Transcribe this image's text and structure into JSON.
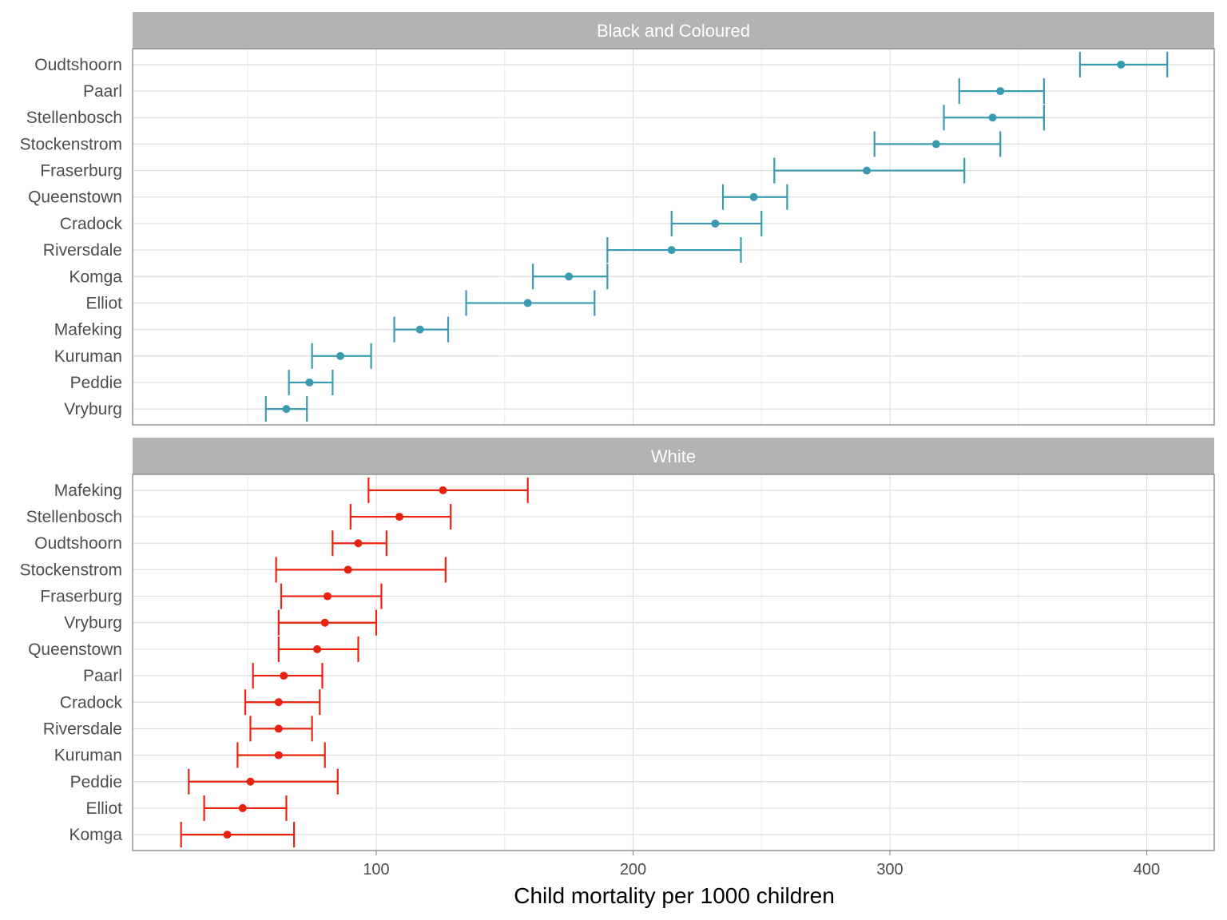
{
  "chart_data": {
    "type": "dot-errorbar",
    "xlabel": "Child mortality per 1000 children",
    "x_ticks": [
      100,
      200,
      300,
      400
    ],
    "xlim": [
      10,
      425
    ],
    "facets": [
      {
        "title": "Black and Coloured",
        "color": "#3a9bb0",
        "points": [
          {
            "label": "Oudtshoorn",
            "value": 390,
            "low": 374,
            "high": 408
          },
          {
            "label": "Paarl",
            "value": 343,
            "low": 327,
            "high": 360
          },
          {
            "label": "Stellenbosch",
            "value": 340,
            "low": 321,
            "high": 360
          },
          {
            "label": "Stockenstrom",
            "value": 318,
            "low": 294,
            "high": 343
          },
          {
            "label": "Fraserburg",
            "value": 291,
            "low": 255,
            "high": 329
          },
          {
            "label": "Queenstown",
            "value": 247,
            "low": 235,
            "high": 260
          },
          {
            "label": "Cradock",
            "value": 232,
            "low": 215,
            "high": 250
          },
          {
            "label": "Riversdale",
            "value": 215,
            "low": 190,
            "high": 242
          },
          {
            "label": "Komga",
            "value": 175,
            "low": 161,
            "high": 190
          },
          {
            "label": "Elliot",
            "value": 159,
            "low": 135,
            "high": 185
          },
          {
            "label": "Mafeking",
            "value": 117,
            "low": 107,
            "high": 128
          },
          {
            "label": "Kuruman",
            "value": 86,
            "low": 75,
            "high": 98
          },
          {
            "label": "Peddie",
            "value": 74,
            "low": 66,
            "high": 83
          },
          {
            "label": "Vryburg",
            "value": 65,
            "low": 57,
            "high": 73
          }
        ]
      },
      {
        "title": "White",
        "color": "#e8220e",
        "points": [
          {
            "label": "Mafeking",
            "value": 126,
            "low": 97,
            "high": 159
          },
          {
            "label": "Stellenbosch",
            "value": 109,
            "low": 90,
            "high": 129
          },
          {
            "label": "Oudtshoorn",
            "value": 93,
            "low": 83,
            "high": 104
          },
          {
            "label": "Stockenstrom",
            "value": 89,
            "low": 61,
            "high": 127
          },
          {
            "label": "Fraserburg",
            "value": 81,
            "low": 63,
            "high": 102
          },
          {
            "label": "Vryburg",
            "value": 80,
            "low": 62,
            "high": 100
          },
          {
            "label": "Queenstown",
            "value": 77,
            "low": 62,
            "high": 93
          },
          {
            "label": "Paarl",
            "value": 64,
            "low": 52,
            "high": 79
          },
          {
            "label": "Cradock",
            "value": 62,
            "low": 49,
            "high": 78
          },
          {
            "label": "Riversdale",
            "value": 62,
            "low": 51,
            "high": 75
          },
          {
            "label": "Kuruman",
            "value": 62,
            "low": 46,
            "high": 80
          },
          {
            "label": "Peddie",
            "value": 51,
            "low": 27,
            "high": 85
          },
          {
            "label": "Elliot",
            "value": 48,
            "low": 33,
            "high": 65
          },
          {
            "label": "Komga",
            "value": 42,
            "low": 24,
            "high": 68
          }
        ]
      }
    ]
  }
}
